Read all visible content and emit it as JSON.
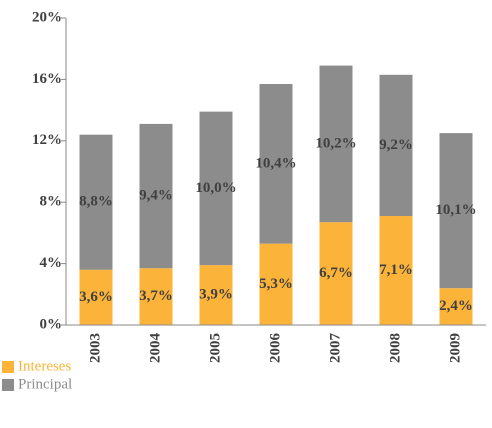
{
  "chart_data": {
    "type": "stacked_bar",
    "categories": [
      "2003",
      "2004",
      "2005",
      "2006",
      "2007",
      "2008",
      "2009"
    ],
    "series": [
      {
        "name": "Intereses",
        "color": "#fbb33a",
        "values": [
          3.6,
          3.7,
          3.9,
          5.3,
          6.7,
          7.1,
          2.4
        ],
        "value_labels": [
          "3,6%",
          "3,7%",
          "3,9%",
          "5,3%",
          "6,7%",
          "7,1%",
          "2,4%"
        ]
      },
      {
        "name": "Principal",
        "color": "#8c8c8d",
        "values": [
          8.8,
          9.4,
          10.0,
          10.4,
          10.2,
          9.2,
          10.1
        ],
        "value_labels": [
          "8,8%",
          "9,4%",
          "10,0%",
          "10,4%",
          "10,2%",
          "9,2%",
          "10,1%"
        ]
      }
    ],
    "ylim": [
      0,
      20
    ],
    "yticks": [
      {
        "value": 0,
        "label": "0%"
      },
      {
        "value": 4,
        "label": "4%"
      },
      {
        "value": 8,
        "label": "8%"
      },
      {
        "value": 12,
        "label": "12%"
      },
      {
        "value": 16,
        "label": "16%"
      },
      {
        "value": 20,
        "label": "20%"
      }
    ],
    "grid": false,
    "legend": "bottom-left"
  }
}
